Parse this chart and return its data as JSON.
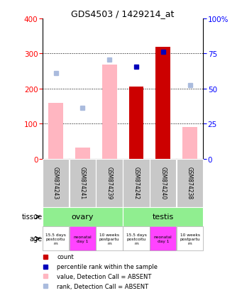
{
  "title": "GDS4503 / 1429214_at",
  "samples": [
    "GSM874243",
    "GSM874241",
    "GSM874239",
    "GSM874242",
    "GSM874240",
    "GSM874238"
  ],
  "bar_values": [
    null,
    null,
    null,
    205,
    318,
    null
  ],
  "bar_absent_values": [
    158,
    32,
    268,
    null,
    null,
    90
  ],
  "rank_present": [
    null,
    null,
    null,
    263,
    305,
    null
  ],
  "rank_absent": [
    243,
    145,
    282,
    null,
    null,
    210
  ],
  "ylim_left": [
    0,
    400
  ],
  "yticks_left": [
    0,
    100,
    200,
    300,
    400
  ],
  "yticks_right": [
    0,
    25,
    50,
    75,
    100
  ],
  "bar_color": "#CC0000",
  "bar_absent_color": "#FFB6C1",
  "rank_present_color": "#0000BB",
  "rank_absent_color": "#AABBDD",
  "tissue_info": [
    [
      "ovary",
      0,
      3
    ],
    [
      "testis",
      3,
      6
    ]
  ],
  "tissue_color": "#90EE90",
  "age_labels": [
    "15.5 days\npostcoitu\nm",
    "neonatal\nday 1",
    "10 weeks\npostpartu\nm",
    "15.5 days\npostcoitu\nm",
    "neonatal\nday 1",
    "10 weeks\npostpartu\nm"
  ],
  "age_colors": [
    "white",
    "#FF44FF",
    "white",
    "white",
    "#FF44FF",
    "white"
  ],
  "legend_items": [
    [
      "#CC0000",
      "count"
    ],
    [
      "#0000BB",
      "percentile rank within the sample"
    ],
    [
      "#FFB6C1",
      "value, Detection Call = ABSENT"
    ],
    [
      "#AABBDD",
      "rank, Detection Call = ABSENT"
    ]
  ]
}
